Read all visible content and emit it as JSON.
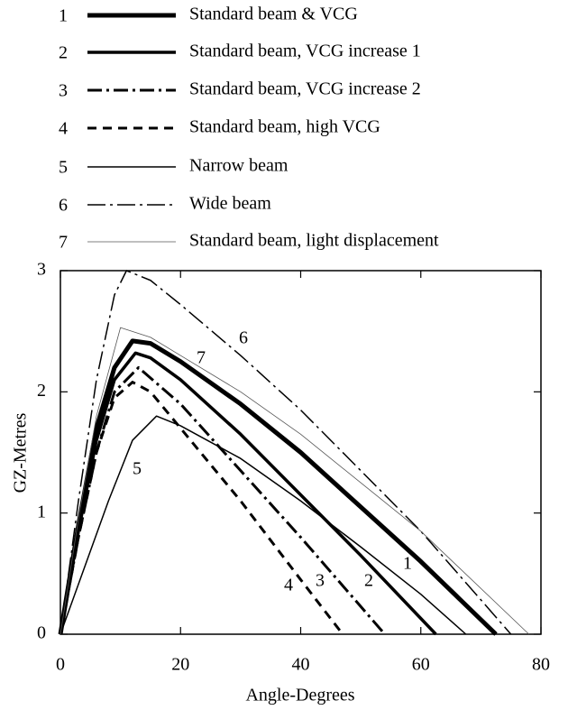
{
  "chart_data": {
    "type": "line",
    "xlabel": "Angle-Degrees",
    "ylabel": "GZ-Metres",
    "xlim": [
      0,
      80
    ],
    "xticks": [
      0,
      20,
      40,
      60,
      80
    ],
    "ylim": [
      0,
      3
    ],
    "yticks": [
      0,
      1,
      2,
      3
    ],
    "series": [
      {
        "key": "1",
        "name": "Standard beam & VCG",
        "color": "#000",
        "width": 5,
        "dash": "none",
        "x": [
          0,
          3,
          6,
          9,
          12,
          15,
          20,
          30,
          40,
          50,
          60,
          72.5
        ],
        "values": [
          0,
          0.9,
          1.7,
          2.2,
          2.42,
          2.4,
          2.25,
          1.9,
          1.5,
          1.05,
          0.6,
          0
        ]
      },
      {
        "key": "2",
        "name": "Standard beam, VCG increase 1",
        "color": "#000",
        "width": 3.5,
        "dash": "none",
        "x": [
          0,
          3,
          6,
          9,
          12.5,
          15,
          20,
          30,
          40,
          50,
          62.5
        ],
        "values": [
          0,
          0.85,
          1.6,
          2.1,
          2.32,
          2.28,
          2.1,
          1.65,
          1.15,
          0.65,
          0
        ]
      },
      {
        "key": "3",
        "name": "Standard beam, VCG increase 2",
        "color": "#000",
        "width": 3,
        "dash": "16,5,3,5",
        "x": [
          0,
          3,
          6,
          9,
          13,
          20,
          30,
          40,
          54
        ],
        "values": [
          0,
          0.8,
          1.5,
          2.0,
          2.2,
          1.9,
          1.35,
          0.8,
          0
        ]
      },
      {
        "key": "4",
        "name": "Standard beam, high VCG",
        "color": "#000",
        "width": 3,
        "dash": "10,7",
        "x": [
          0,
          3,
          6,
          9,
          12,
          15,
          20,
          30,
          40,
          47
        ],
        "values": [
          0,
          0.8,
          1.5,
          1.95,
          2.08,
          2.0,
          1.7,
          1.1,
          0.45,
          0
        ]
      },
      {
        "key": "5",
        "name": "Narrow beam",
        "color": "#000",
        "width": 1.5,
        "dash": "none",
        "x": [
          0,
          4,
          8,
          12,
          16,
          20,
          30,
          40,
          50,
          60,
          67.5
        ],
        "values": [
          0,
          0.55,
          1.1,
          1.6,
          1.8,
          1.72,
          1.45,
          1.1,
          0.72,
          0.33,
          0
        ]
      },
      {
        "key": "6",
        "name": "Wide beam",
        "color": "#000",
        "width": 1.5,
        "dash": "20,5,3,5",
        "x": [
          0,
          3,
          6,
          9,
          11,
          15,
          20,
          30,
          40,
          50,
          60,
          75
        ],
        "values": [
          0,
          1.1,
          2.1,
          2.8,
          3.0,
          2.92,
          2.72,
          2.3,
          1.85,
          1.35,
          0.85,
          0
        ]
      },
      {
        "key": "7",
        "name": "Standard beam, light displacement",
        "color": "#555",
        "width": 0.8,
        "dash": "none",
        "x": [
          0,
          3,
          6,
          10,
          15,
          20,
          30,
          40,
          50,
          60,
          78
        ],
        "values": [
          0,
          0.95,
          1.8,
          2.53,
          2.45,
          2.3,
          2.0,
          1.65,
          1.25,
          0.85,
          0
        ]
      }
    ]
  }
}
